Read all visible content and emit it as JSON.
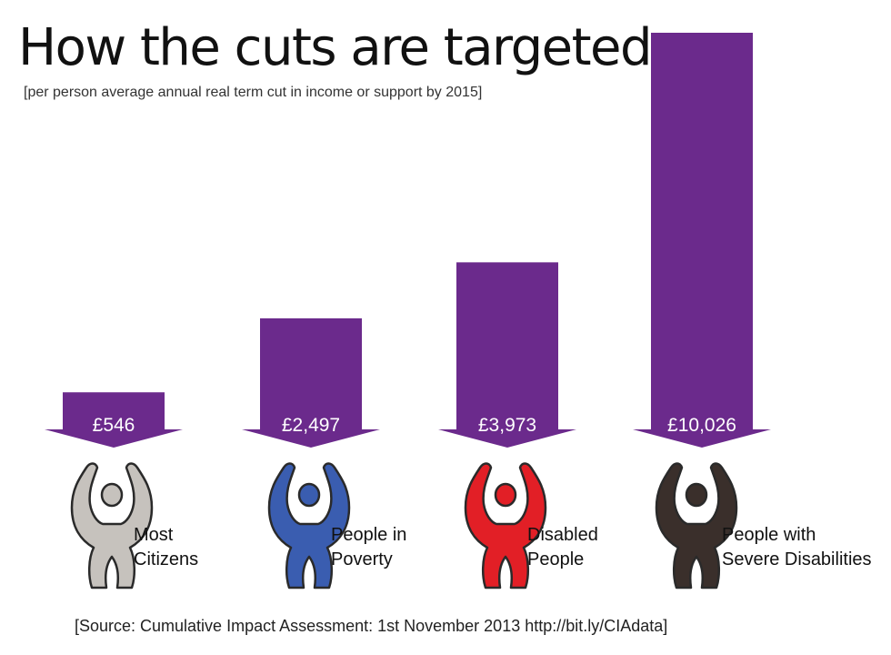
{
  "title": "How the cuts are targeted",
  "subtitle": "[per person average annual real term cut in income or support by 2015]",
  "source": "[Source: Cumulative Impact Assessment: 1st November 2013 http://bit.ly/CIAdata]",
  "colors": {
    "bar": "#6b2a8c",
    "figures": [
      "#c6c2bd",
      "#3a5db0",
      "#e21f26",
      "#3a2f2b"
    ]
  },
  "chart_data": {
    "type": "bar",
    "title": "How the cuts are targeted",
    "subtitle": "[per person average annual real term cut in income or support by 2015]",
    "categories": [
      "Most Citizens",
      "People in Poverty",
      "Disabled People",
      "People with Severe Disabilities"
    ],
    "category_lines": [
      [
        "Most",
        "Citizens"
      ],
      [
        "People in",
        "Poverty"
      ],
      [
        "Disabled",
        "People"
      ],
      [
        "People with",
        "Severe Disabilities"
      ]
    ],
    "values": [
      546,
      2497,
      3973,
      10026
    ],
    "value_labels": [
      "£546",
      "£2,497",
      "£3,973",
      "£10,026"
    ],
    "ylim": [
      0,
      10026
    ],
    "grid": false,
    "legend": "none"
  }
}
